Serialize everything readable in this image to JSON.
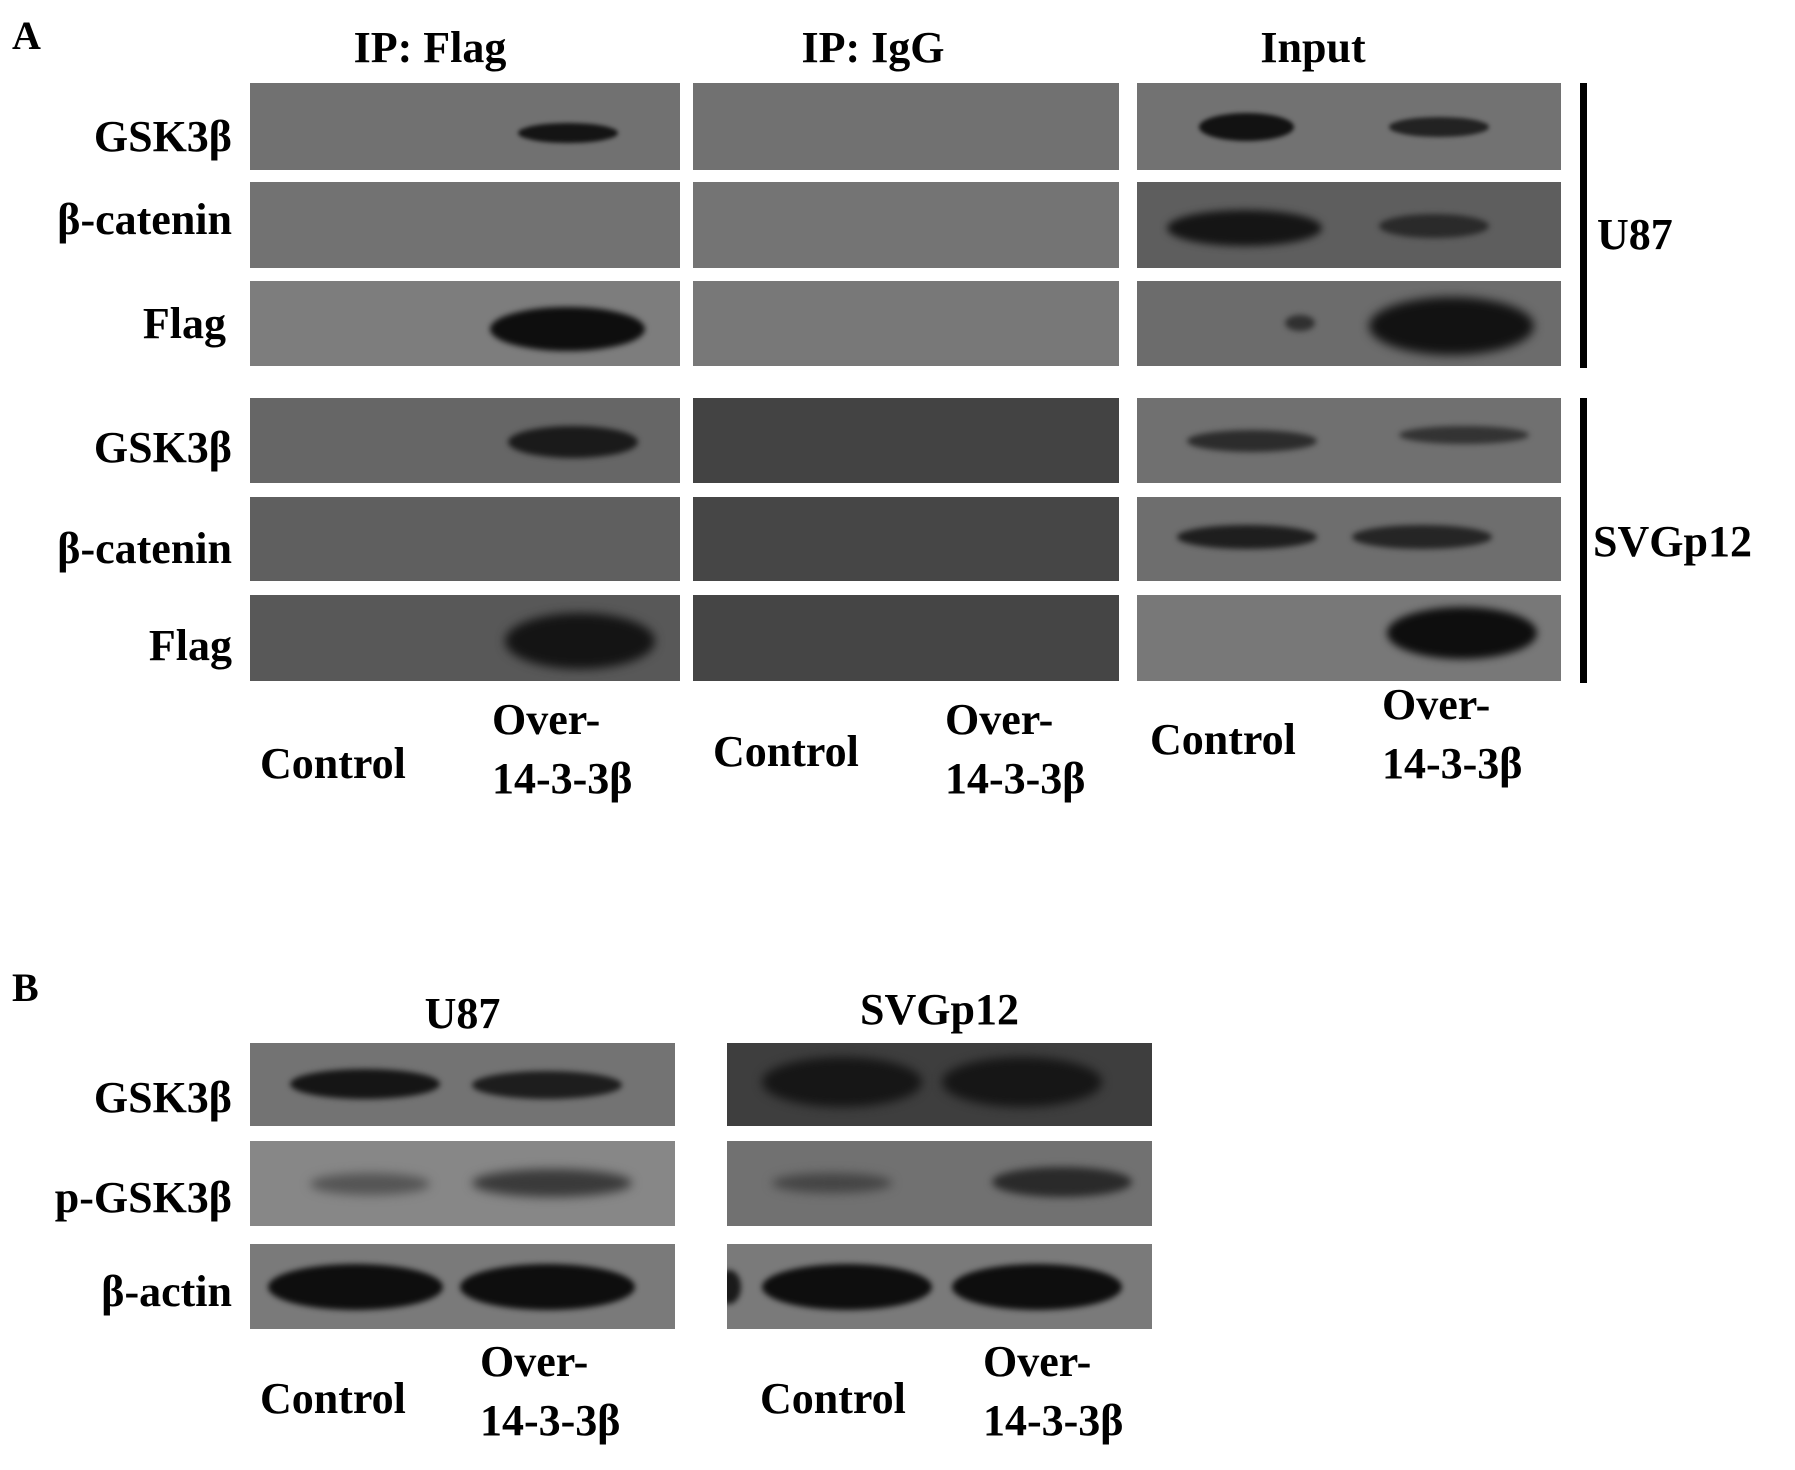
{
  "panel_a": {
    "letter": "A",
    "columns": [
      "IP: Flag",
      "IP: IgG",
      "Input"
    ],
    "row_labels": [
      "GSK3β",
      "β-catenin",
      "Flag",
      "GSK3β",
      "β-catenin",
      "Flag"
    ],
    "cell_lines": [
      "U87",
      "SVGp12"
    ],
    "lanes": [
      {
        "control": "Control",
        "over_line1": "Over-",
        "over_line2": "14-3-3β"
      },
      {
        "control": "Control",
        "over_line1": "Over-",
        "over_line2": "14-3-3β"
      },
      {
        "control": "Control",
        "over_line1": "Over-",
        "over_line2": "14-3-3β"
      }
    ]
  },
  "panel_b": {
    "letter": "B",
    "columns": [
      "U87",
      "SVGp12"
    ],
    "row_labels": [
      "GSK3β",
      "p-GSK3β",
      "β-actin"
    ],
    "lanes": [
      {
        "control": "Control",
        "over_line1": "Over-",
        "over_line2": "14-3-3β"
      },
      {
        "control": "Control",
        "over_line1": "Over-",
        "over_line2": "14-3-3β"
      }
    ]
  },
  "colors": {
    "background": "#ffffff",
    "text": "#000000",
    "band": "#0a0a0a"
  }
}
